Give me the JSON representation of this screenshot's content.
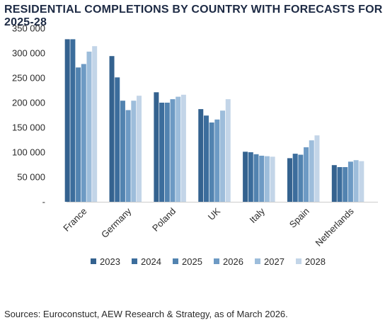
{
  "source_note": "Sources: Euroconstuct, AEW Research & Strategy, as of March 2026.",
  "chart_data": {
    "type": "bar",
    "title": "RESIDENTIAL COMPLETIONS BY COUNTRY WITH FORECASTS FOR 2025-28",
    "xlabel": "",
    "ylabel": "",
    "categories": [
      "France",
      "Germany",
      "Poland",
      "UK",
      "Italy",
      "Spain",
      "Netherlands"
    ],
    "ylim": [
      0,
      350000
    ],
    "yticks": [
      {
        "value": 0,
        "label": "-"
      },
      {
        "value": 50000,
        "label": "50 000"
      },
      {
        "value": 100000,
        "label": "100 000"
      },
      {
        "value": 150000,
        "label": "150 000"
      },
      {
        "value": 200000,
        "label": "200 000"
      },
      {
        "value": 250000,
        "label": "250 000"
      },
      {
        "value": 300000,
        "label": "300 000"
      },
      {
        "value": 350000,
        "label": "350 000"
      }
    ],
    "grid": false,
    "legend_position": "bottom",
    "series": [
      {
        "name": "2023",
        "color": "#34628f",
        "values": [
          328000,
          294000,
          221000,
          187000,
          101000,
          88000,
          74000
        ]
      },
      {
        "name": "2024",
        "color": "#3c6d9c",
        "values": [
          328000,
          251000,
          200000,
          174000,
          100000,
          97000,
          70000
        ]
      },
      {
        "name": "2025",
        "color": "#5283b0",
        "values": [
          271000,
          204000,
          200000,
          160000,
          96000,
          95000,
          70000
        ]
      },
      {
        "name": "2026",
        "color": "#6d9ac4",
        "values": [
          278000,
          185000,
          207000,
          166000,
          93000,
          110000,
          81000
        ]
      },
      {
        "name": "2027",
        "color": "#9dbddb",
        "values": [
          303000,
          204000,
          212000,
          184000,
          92000,
          124000,
          84000
        ]
      },
      {
        "name": "2028",
        "color": "#c3d5e8",
        "values": [
          314000,
          214000,
          216000,
          207000,
          91000,
          134000,
          82000
        ]
      }
    ]
  }
}
